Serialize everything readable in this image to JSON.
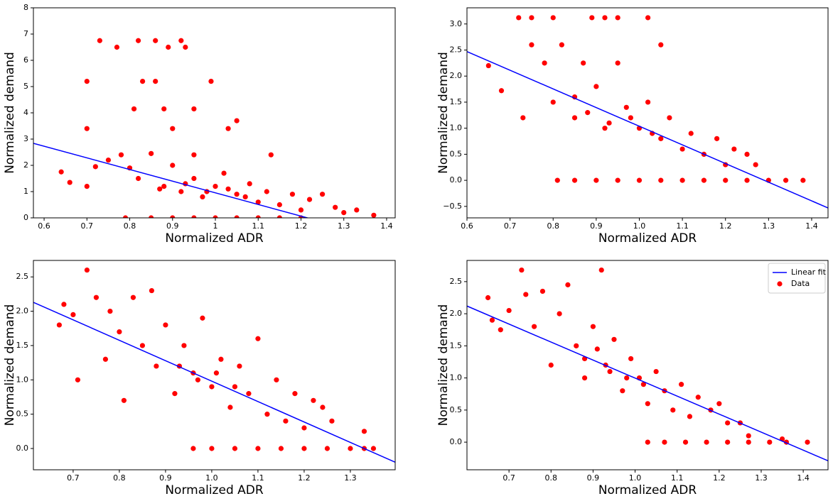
{
  "chart_data": [
    {
      "type": "scatter",
      "xlabel": "Normalized ADR",
      "ylabel": "Normalized demand",
      "xlim": [
        0.575,
        1.42
      ],
      "ylim": [
        0,
        8
      ],
      "xticks": [
        0.6,
        0.7,
        0.8,
        0.9,
        1.0,
        1.1,
        1.2,
        1.3,
        1.4
      ],
      "yticks": [
        0,
        1,
        2,
        3,
        4,
        5,
        6,
        7,
        8
      ],
      "series": [
        {
          "type": "line",
          "color": "#0000ff",
          "x": [
            0.575,
            1.42
          ],
          "values": [
            2.84,
            -0.91
          ]
        },
        {
          "type": "scatter",
          "color": "#ff0000",
          "x": [
            0.73,
            0.77,
            0.82,
            0.86,
            0.89,
            0.92,
            0.93,
            0.7,
            0.83,
            0.86,
            0.99,
            0.81,
            0.88,
            0.95,
            1.05,
            0.7,
            0.9,
            1.03,
            0.64,
            0.66,
            0.7,
            0.72,
            0.75,
            0.78,
            0.8,
            0.82,
            0.85,
            0.88,
            0.9,
            0.92,
            0.95,
            0.97,
            1.0,
            1.02,
            1.05,
            1.08,
            1.1,
            1.12,
            1.15,
            1.18,
            1.2,
            1.22,
            1.25,
            1.28,
            1.3,
            1.33,
            1.37,
            0.95,
            1.13,
            0.79,
            0.85,
            0.9,
            0.95,
            1.0,
            1.05,
            1.1,
            1.15,
            1.2,
            0.87,
            0.93,
            0.98,
            1.03,
            1.07
          ],
          "values": [
            6.75,
            6.5,
            6.75,
            6.75,
            6.5,
            6.75,
            6.5,
            5.2,
            5.2,
            5.2,
            5.2,
            4.15,
            4.15,
            4.15,
            3.7,
            3.4,
            3.4,
            3.4,
            1.75,
            1.35,
            1.2,
            1.95,
            2.2,
            2.4,
            1.9,
            1.5,
            2.45,
            1.2,
            2.0,
            1.0,
            1.5,
            0.8,
            1.2,
            1.7,
            0.9,
            1.3,
            0.6,
            1.0,
            0.5,
            0.9,
            0.3,
            0.7,
            0.9,
            0.4,
            0.2,
            0.3,
            0.1,
            2.4,
            2.4,
            0,
            0,
            0,
            0,
            0,
            0,
            0,
            0,
            0,
            1.1,
            1.3,
            1.0,
            1.1,
            0.8
          ]
        }
      ]
    },
    {
      "type": "scatter",
      "xlabel": "Normalized ADR",
      "ylabel": "Normalized demand",
      "xlim": [
        0.6,
        1.438
      ],
      "ylim": [
        -0.72,
        3.31
      ],
      "xticks": [
        0.6,
        0.7,
        0.8,
        0.9,
        {
          "value": 1.0,
          "label": "1.0"
        },
        1.1,
        1.2,
        1.3,
        1.4
      ],
      "yticks": [
        {
          "value": -0.5,
          "label": "−0.5"
        },
        {
          "value": 0,
          "label": "0.0"
        },
        0.5,
        {
          "value": 1,
          "label": "1.0"
        },
        1.5,
        {
          "value": 2,
          "label": "2.0"
        },
        2.5,
        {
          "value": 3,
          "label": "3.0"
        }
      ],
      "series": [
        {
          "type": "line",
          "color": "#0000ff",
          "x": [
            0.6,
            1.438
          ],
          "values": [
            2.47,
            -0.53
          ]
        },
        {
          "type": "scatter",
          "color": "#ff0000",
          "x": [
            0.65,
            0.68,
            0.72,
            0.75,
            0.8,
            0.89,
            0.92,
            0.95,
            1.02,
            0.73,
            0.75,
            0.78,
            0.8,
            0.82,
            0.85,
            0.87,
            0.9,
            0.92,
            0.95,
            0.97,
            1.0,
            1.02,
            1.05,
            1.07,
            1.1,
            1.12,
            1.15,
            1.18,
            1.2,
            1.22,
            1.25,
            1.27,
            1.05,
            0.85,
            0.88,
            0.93,
            0.98,
            1.03,
            0.81,
            0.85,
            0.9,
            0.95,
            1.0,
            1.05,
            1.1,
            1.15,
            1.2,
            1.25,
            1.3,
            1.34,
            1.38
          ],
          "values": [
            2.2,
            1.72,
            3.12,
            3.12,
            3.12,
            3.12,
            3.12,
            3.12,
            3.12,
            1.2,
            2.6,
            2.25,
            1.5,
            2.6,
            1.2,
            2.25,
            1.8,
            1.0,
            2.25,
            1.4,
            1.0,
            1.5,
            0.8,
            1.2,
            0.6,
            0.9,
            0.5,
            0.8,
            0.3,
            0.6,
            0.5,
            0.3,
            2.6,
            1.6,
            1.3,
            1.1,
            1.2,
            0.9,
            0,
            0,
            0,
            0,
            0,
            0,
            0,
            0,
            0,
            0,
            0,
            0,
            0
          ]
        }
      ]
    },
    {
      "type": "scatter",
      "xlabel": "Normalized ADR",
      "ylabel": "Normalized demand",
      "xlim": [
        0.614,
        1.397
      ],
      "ylim": [
        -0.31,
        2.74
      ],
      "xticks": [
        0.7,
        0.8,
        0.9,
        {
          "value": 1.0,
          "label": "1.0"
        },
        1.1,
        1.2,
        1.3
      ],
      "yticks": [
        {
          "value": 0,
          "label": "0.0"
        },
        0.5,
        {
          "value": 1,
          "label": "1.0"
        },
        1.5,
        {
          "value": 2,
          "label": "2.0"
        },
        2.5
      ],
      "series": [
        {
          "type": "line",
          "color": "#0000ff",
          "x": [
            0.614,
            1.397
          ],
          "values": [
            2.13,
            -0.2
          ]
        },
        {
          "type": "scatter",
          "color": "#ff0000",
          "x": [
            0.67,
            0.68,
            0.7,
            0.71,
            0.73,
            0.75,
            0.77,
            0.78,
            0.8,
            0.81,
            0.83,
            0.85,
            0.87,
            0.88,
            0.9,
            0.92,
            0.94,
            0.96,
            0.98,
            1.0,
            1.02,
            1.04,
            1.06,
            1.08,
            1.1,
            1.12,
            1.14,
            1.16,
            1.18,
            1.2,
            1.22,
            1.24,
            1.26,
            0.96,
            1.0,
            1.05,
            1.1,
            1.15,
            1.2,
            1.25,
            1.3,
            1.33,
            1.35,
            1.33,
            0.93,
            0.97,
            1.01,
            1.05
          ],
          "values": [
            1.8,
            2.1,
            1.95,
            1.0,
            2.6,
            2.2,
            1.3,
            2.0,
            1.7,
            0.7,
            2.2,
            1.5,
            2.3,
            1.2,
            1.8,
            0.8,
            1.5,
            1.1,
            1.9,
            0.9,
            1.3,
            0.6,
            1.2,
            0.8,
            1.6,
            0.5,
            1.0,
            0.4,
            0.8,
            0.3,
            0.7,
            0.6,
            0.4,
            0,
            0,
            0,
            0,
            0,
            0,
            0,
            0,
            0,
            0,
            0.25,
            1.2,
            1.0,
            1.1,
            0.9
          ]
        }
      ]
    },
    {
      "type": "scatter",
      "xlabel": "Normalized ADR",
      "ylabel": "Normalized demand",
      "xlim": [
        0.6,
        1.459
      ],
      "ylim": [
        -0.43,
        2.83
      ],
      "xticks": [
        0.7,
        0.8,
        0.9,
        {
          "value": 1.0,
          "label": "1.0"
        },
        1.1,
        1.2,
        1.3,
        1.4
      ],
      "yticks": [
        {
          "value": 0,
          "label": "0.0"
        },
        0.5,
        {
          "value": 1,
          "label": "1.0"
        },
        1.5,
        {
          "value": 2,
          "label": "2.0"
        },
        2.5
      ],
      "legend": "upper right",
      "series": [
        {
          "name": "Linear fit",
          "type": "line",
          "color": "#0000ff",
          "x": [
            0.6,
            1.459
          ],
          "values": [
            2.12,
            -0.29
          ]
        },
        {
          "name": "Data",
          "type": "scatter",
          "color": "#ff0000",
          "x": [
            0.65,
            0.66,
            0.68,
            0.7,
            0.73,
            0.74,
            0.76,
            0.78,
            0.8,
            0.82,
            0.84,
            0.86,
            0.88,
            0.9,
            0.92,
            0.93,
            0.95,
            0.97,
            0.99,
            1.01,
            1.03,
            1.05,
            1.07,
            1.09,
            1.11,
            1.13,
            1.15,
            1.18,
            1.2,
            1.22,
            1.25,
            1.27,
            1.03,
            1.07,
            1.12,
            1.17,
            1.22,
            1.27,
            1.32,
            1.36,
            1.41,
            1.35,
            0.88,
            0.94,
            0.98,
            1.02,
            0.91
          ],
          "values": [
            2.25,
            1.9,
            1.75,
            2.05,
            2.68,
            2.3,
            1.8,
            2.35,
            1.2,
            2.0,
            2.45,
            1.5,
            1.0,
            1.8,
            2.68,
            1.2,
            1.6,
            0.8,
            1.3,
            1.0,
            0.6,
            1.1,
            0.8,
            0.5,
            0.9,
            0.4,
            0.7,
            0.5,
            0.6,
            0.3,
            0.3,
            0.1,
            0,
            0,
            0,
            0,
            0,
            0,
            0,
            0,
            0,
            0.05,
            1.3,
            1.1,
            1.0,
            0.9,
            1.45
          ]
        }
      ]
    }
  ]
}
